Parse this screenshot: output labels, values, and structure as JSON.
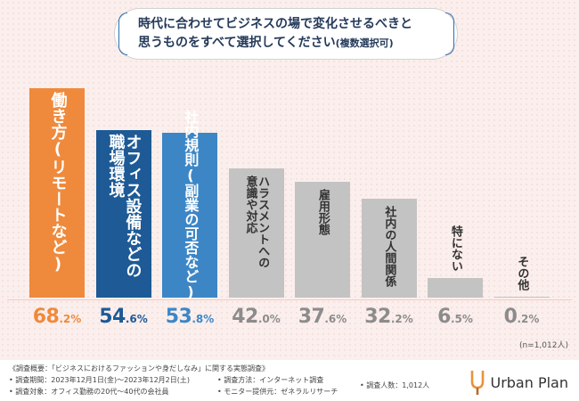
{
  "title": {
    "line1": "時代に合わせてビジネスの場で変化させるべきと",
    "line2_main": "思うものをすべて選択してください",
    "line2_sub": "(複数選択可)"
  },
  "chart_data": {
    "type": "bar",
    "title": "時代に合わせてビジネスの場で変化させるべきと思うものをすべて選択してください(複数選択可)",
    "ylim": [
      0,
      70
    ],
    "unit": "%",
    "categories": [
      [
        "働き方(リモートなど)"
      ],
      [
        "オフィス設備などの",
        "職場環境"
      ],
      [
        "社内規則(副業の可否など)"
      ],
      [
        "ハラスメントへの",
        "意識や対応"
      ],
      [
        "雇用形態"
      ],
      [
        "社内の人間関係"
      ],
      [
        "特にない"
      ],
      [
        "その他"
      ]
    ],
    "values": [
      68.2,
      54.6,
      53.8,
      42.0,
      37.6,
      32.2,
      6.5,
      0.2
    ],
    "value_int": [
      "68",
      "54",
      "53",
      "42",
      "37",
      "32",
      "6",
      "0"
    ],
    "value_dec": [
      ".2%",
      ".6%",
      ".8%",
      ".0%",
      ".6%",
      ".2%",
      ".5%",
      ".2%"
    ],
    "bar_colors": [
      "#ef8a3c",
      "#1d5a96",
      "#3d86c6",
      "#c3c3c3",
      "#c3c3c3",
      "#c3c3c3",
      "#c3c3c3",
      "#c3c3c3"
    ],
    "value_colors": [
      "#ef8a3c",
      "#1d5a96",
      "#3d86c6",
      "#8c8c8c",
      "#8c8c8c",
      "#8c8c8c",
      "#8c8c8c",
      "#8c8c8c"
    ],
    "label_colors": [
      "#ffffff",
      "#ffffff",
      "#ffffff",
      "#333333",
      "#333333",
      "#333333",
      "#333333",
      "#333333"
    ]
  },
  "sample_size": "(n=1,012人)",
  "footer": {
    "overview": "《調査概要：「ビジネスにおけるファッションや身だしなみ」に関する実態調査》",
    "period": "• 調査期間：2023年12月1日(金)〜2023年12月2日(土)",
    "target": "• 調査対象：オフィス勤務の20代〜40代の会社員",
    "method": "• 調査方法：インターネット調査",
    "monitor": "• モニター提供元：ゼネラルリサーチ",
    "count": "• 調査人数：1,012人"
  },
  "logo": {
    "text": "Urban Plan",
    "colors": [
      "#e8933a",
      "#b56a2c"
    ]
  }
}
